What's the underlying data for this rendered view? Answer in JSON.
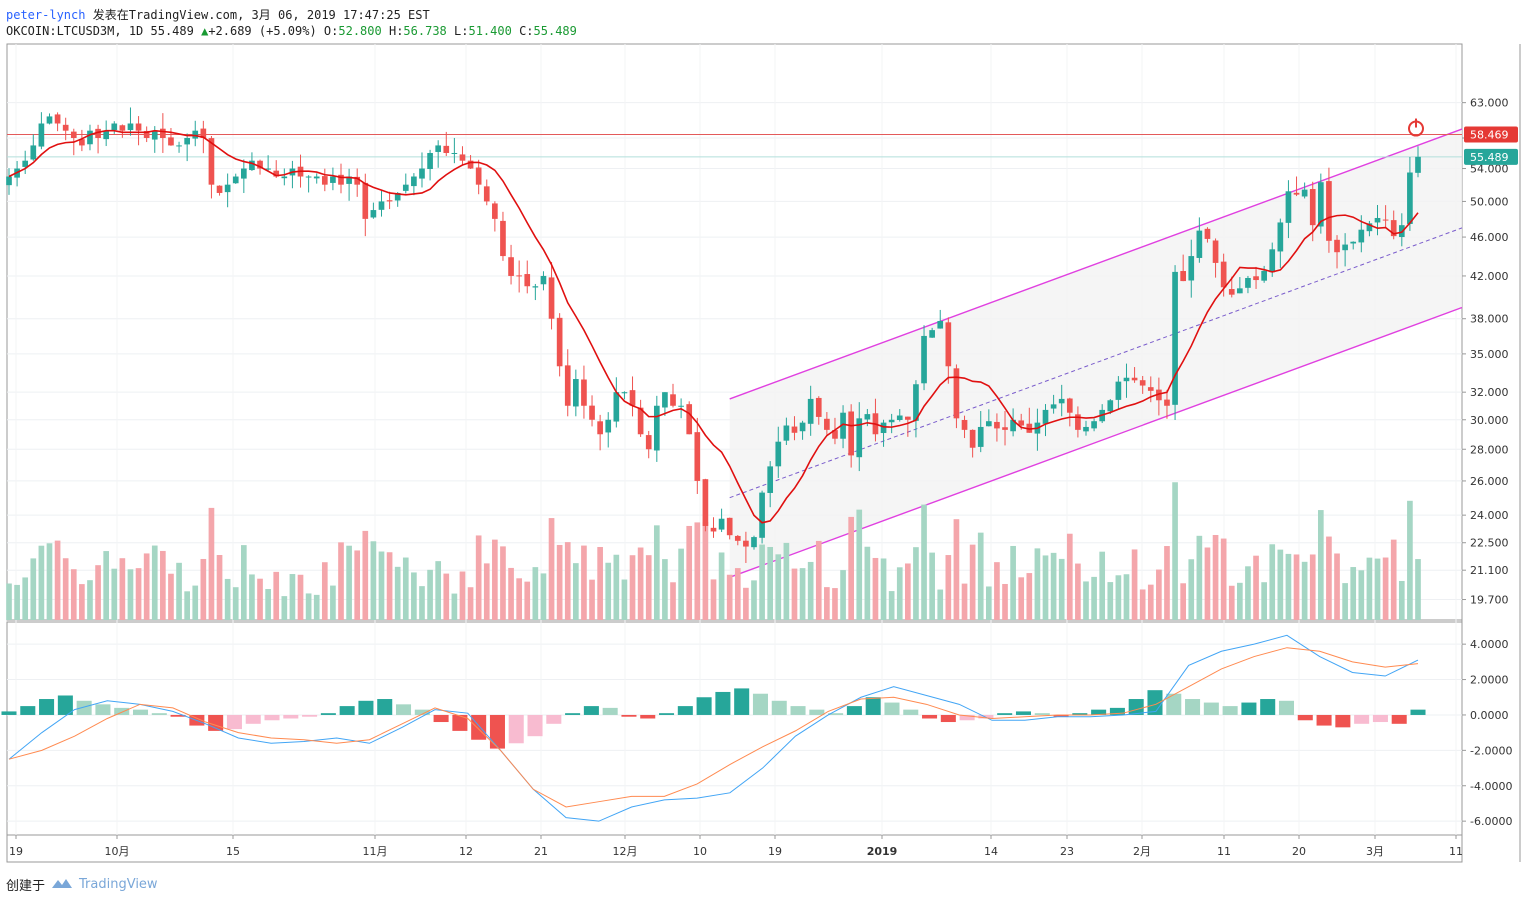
{
  "header": {
    "user": "peter-lynch",
    "published": "发表在TradingView.com, 3月 06, 2019 17:47:25 EST",
    "symbol_line": "OKCOIN:LTCUSD3M, 1D 55.489",
    "change_icon": "triangle-up-icon",
    "change": "+2.689 (+5.09%)",
    "ohlc": {
      "O": "52.800",
      "H": "56.738",
      "L": "51.400",
      "C": "55.489"
    }
  },
  "colors": {
    "up": "#26a69a",
    "down": "#ef5350",
    "vol_up": "#a5d6c4",
    "vol_down": "#f4a6ab",
    "sma": "#e01010",
    "channel": "#e040e0",
    "macd_line": "#42a5f5",
    "signal_line": "#ff8a50",
    "hline": "#e35a5a",
    "price_tag": "#26a69a",
    "alert_tag": "#e53935"
  },
  "price_axis": {
    "labels": [
      "63.000",
      "58.000",
      "54.000",
      "50.000",
      "46.000",
      "42.000",
      "38.000",
      "35.000",
      "32.000",
      "30.000",
      "28.000",
      "26.000",
      "24.000",
      "22.500",
      "21.100",
      "19.700"
    ],
    "last_price": "55.489",
    "alert_price": "58.469"
  },
  "macd_axis": {
    "labels": [
      "4.0000",
      "2.0000",
      "0.0000",
      "-2.0000",
      "-4.0000",
      "-6.0000"
    ]
  },
  "time_axis": {
    "labels": [
      "19",
      "10月",
      "15",
      "11月",
      "12",
      "21",
      "12月",
      "10",
      "19",
      "2019",
      "14",
      "23",
      "2月",
      "11",
      "20",
      "3月",
      "11"
    ]
  },
  "footer": {
    "created_by": "创建于",
    "brand": "TradingView",
    "logo_icon": "tradingview-logo-icon"
  },
  "chart_data": [
    {
      "type": "candlestick",
      "symbol": "OKCOIN:LTCUSD3M",
      "interval": "1D",
      "y_scale": "log",
      "ylim": [
        19.0,
        68.0
      ],
      "close_approx": [
        53,
        54,
        55,
        57,
        60,
        61,
        60,
        59,
        58,
        57,
        59,
        58,
        59,
        60,
        59,
        60,
        59,
        58,
        59,
        58,
        57,
        57,
        58,
        59,
        58,
        52,
        51,
        52,
        53,
        54,
        55,
        54,
        54,
        53,
        53,
        54,
        53,
        53,
        53,
        52,
        53,
        52,
        53,
        52,
        48,
        49,
        50,
        50,
        51,
        52,
        53,
        54,
        56,
        57,
        56,
        56,
        55,
        54,
        52,
        50,
        48,
        44,
        42,
        42,
        41,
        41,
        42,
        38,
        34,
        31,
        33,
        31,
        30,
        29,
        30,
        32,
        32,
        31,
        29,
        28,
        31,
        32,
        31,
        31,
        29,
        26,
        23.4,
        23.1,
        23.8,
        22.9,
        22.6,
        22.3,
        22.8,
        25.3,
        26.9,
        28.5,
        29.6,
        29.1,
        29.8,
        31.5,
        30.2,
        29.3,
        28.7,
        30.5,
        27.6,
        30.1,
        30.4,
        29.0,
        29.8,
        30.0,
        30.3,
        30.0,
        32.6,
        36.5,
        37.0,
        37.8,
        34.0,
        30.1,
        29.3,
        28.1,
        29.5,
        29.9,
        29.4,
        29.3,
        30.0,
        29.6,
        29.1,
        29.8,
        30.7,
        31.1,
        31.5,
        30.5,
        29.3,
        29.5,
        29.9,
        30.7,
        31.4,
        32.8,
        33.1,
        32.9,
        32.5,
        32.1,
        31.4,
        31.0,
        42.4,
        41.5,
        44.0,
        46.7,
        45.8,
        43.3,
        40.9,
        40.2,
        40.8,
        41.8,
        41.6,
        42.5,
        44.7,
        47.6,
        51.2,
        50.8,
        51.4,
        47.3,
        52.3,
        45.6,
        44.4,
        45.2,
        45.5,
        46.8,
        47.5,
        48.1,
        47.9,
        46.1,
        47.3,
        53.5,
        55.5
      ]
    },
    {
      "type": "line",
      "name": "MACD",
      "ylim": [
        -6.5,
        4.8
      ],
      "series": [
        {
          "name": "histogram_approx",
          "values": [
            0.2,
            0.5,
            0.9,
            1.1,
            0.8,
            0.6,
            0.4,
            0.3,
            0.1,
            -0.1,
            -0.6,
            -0.9,
            -0.8,
            -0.5,
            -0.3,
            -0.2,
            -0.1,
            0.1,
            0.5,
            0.8,
            0.9,
            0.6,
            0.3,
            -0.4,
            -0.9,
            -1.4,
            -1.9,
            -1.6,
            -1.2,
            -0.5,
            0.1,
            0.5,
            0.4,
            -0.1,
            -0.2,
            0.1,
            0.5,
            1.0,
            1.3,
            1.5,
            1.2,
            0.8,
            0.5,
            0.3,
            0.1,
            0.5,
            1.0,
            0.7,
            0.3,
            -0.2,
            -0.4,
            -0.3,
            -0.2,
            0.1,
            0.2,
            0.1,
            -0.1,
            0.1,
            0.3,
            0.4,
            0.9,
            1.4,
            1.2,
            0.9,
            0.7,
            0.5,
            0.7,
            0.9,
            0.8,
            -0.3,
            -0.6,
            -0.7,
            -0.5,
            -0.4,
            -0.5,
            0.3
          ]
        },
        {
          "name": "macd_approx",
          "values": [
            -2.5,
            -1.0,
            0.3,
            0.8,
            0.6,
            0.2,
            -0.5,
            -1.3,
            -1.6,
            -1.5,
            -1.3,
            -1.6,
            -0.7,
            0.3,
            0.1,
            -2.0,
            -4.2,
            -5.8,
            -6.0,
            -5.2,
            -4.8,
            -4.7,
            -4.4,
            -3.0,
            -1.2,
            0.0,
            1.0,
            1.6,
            1.1,
            0.6,
            -0.3,
            -0.3,
            -0.1,
            -0.1,
            0.0,
            0.2,
            2.8,
            3.6,
            4.0,
            4.5,
            3.3,
            2.4,
            2.2,
            3.1
          ]
        },
        {
          "name": "signal_approx",
          "values": [
            -2.5,
            -2.0,
            -1.2,
            -0.2,
            0.6,
            0.4,
            -0.4,
            -1.0,
            -1.3,
            -1.4,
            -1.6,
            -1.4,
            -0.5,
            0.4,
            -0.2,
            -2.0,
            -4.2,
            -5.2,
            -4.9,
            -4.6,
            -4.6,
            -3.9,
            -2.8,
            -1.8,
            -0.9,
            0.2,
            0.9,
            1.0,
            0.6,
            0.0,
            -0.2,
            -0.1,
            0.0,
            0.0,
            0.1,
            0.6,
            1.6,
            2.6,
            3.3,
            3.8,
            3.6,
            3.0,
            2.7,
            2.9
          ]
        }
      ]
    }
  ]
}
